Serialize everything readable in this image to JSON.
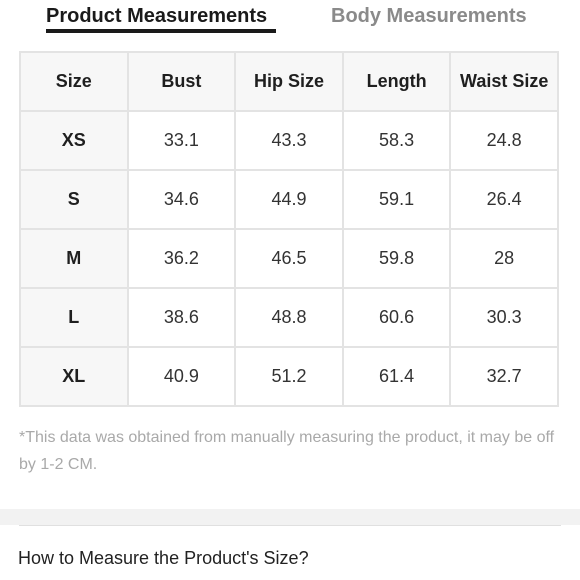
{
  "tabs": [
    {
      "label": "Product Measurements",
      "active": true
    },
    {
      "label": "Body Measurements",
      "active": false
    }
  ],
  "table": {
    "headers": [
      "Size",
      "Bust",
      "Hip Size",
      "Length",
      "Waist Size"
    ],
    "rows": [
      [
        "XS",
        "33.1",
        "43.3",
        "58.3",
        "24.8"
      ],
      [
        "S",
        "34.6",
        "44.9",
        "59.1",
        "26.4"
      ],
      [
        "M",
        "36.2",
        "46.5",
        "59.8",
        "28"
      ],
      [
        "L",
        "38.6",
        "48.8",
        "60.6",
        "30.3"
      ],
      [
        "XL",
        "40.9",
        "51.2",
        "61.4",
        "32.7"
      ]
    ]
  },
  "note": "*This data was obtained from manually measuring the product, it may be off by 1-2 CM.",
  "how_to_measure": "How to Measure the Product's Size?",
  "colors": {
    "active_tab": "#1a1a1a",
    "inactive_tab": "#8a8a8a",
    "note_text": "#a9a9a9",
    "table_border": "#e3e3e3"
  }
}
